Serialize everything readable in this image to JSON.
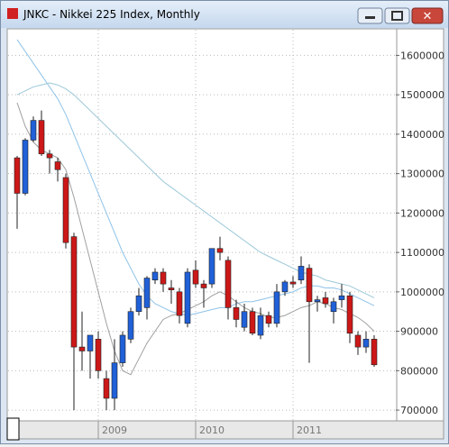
{
  "chart_data": {
    "type": "candlestick",
    "title": "JNKC - Nikkei 225 Index, Monthly",
    "categories": [
      null,
      null,
      null,
      null,
      null,
      null,
      null,
      null,
      null,
      null,
      "2009",
      null,
      null,
      null,
      null,
      null,
      null,
      null,
      null,
      null,
      null,
      null,
      "2010",
      null,
      null,
      null,
      null,
      null,
      null,
      null,
      null,
      null,
      null,
      null,
      "2011",
      null,
      null,
      null,
      null,
      null,
      null,
      null,
      null,
      null,
      null
    ],
    "open": [
      1340000,
      1250000,
      1385000,
      1435000,
      1350000,
      1330000,
      1290000,
      1140000,
      860000,
      850000,
      880000,
      780000,
      730000,
      820000,
      880000,
      950000,
      960000,
      1030000,
      1050000,
      1010000,
      1000000,
      920000,
      1055000,
      1020000,
      1020000,
      1110000,
      1080000,
      960000,
      910000,
      950000,
      890000,
      940000,
      920000,
      1000000,
      1025000,
      1030000,
      1060000,
      975000,
      985000,
      950000,
      980000,
      990000,
      890000,
      860000,
      880000
    ],
    "high": [
      1345000,
      1390000,
      1445000,
      1460000,
      1360000,
      1340000,
      1300000,
      1150000,
      950000,
      890000,
      900000,
      800000,
      880000,
      900000,
      960000,
      1010000,
      1040000,
      1060000,
      1060000,
      1030000,
      1010000,
      1060000,
      1080000,
      1030000,
      1110000,
      1140000,
      1090000,
      980000,
      970000,
      960000,
      960000,
      950000,
      1020000,
      1030000,
      1040000,
      1090000,
      1070000,
      990000,
      1000000,
      985000,
      1020000,
      1000000,
      900000,
      900000,
      890000
    ],
    "low": [
      1160000,
      1245000,
      1380000,
      1345000,
      1300000,
      1280000,
      1110000,
      700000,
      800000,
      780000,
      780000,
      700000,
      700000,
      810000,
      870000,
      940000,
      930000,
      1020000,
      1000000,
      970000,
      920000,
      910000,
      1010000,
      960000,
      1010000,
      1080000,
      930000,
      910000,
      900000,
      890000,
      880000,
      910000,
      910000,
      990000,
      1010000,
      1020000,
      820000,
      950000,
      960000,
      920000,
      960000,
      870000,
      840000,
      845000,
      810000
    ],
    "close": [
      1250000,
      1385000,
      1435000,
      1350000,
      1340000,
      1310000,
      1125000,
      860000,
      850000,
      890000,
      800000,
      730000,
      820000,
      890000,
      950000,
      990000,
      1035000,
      1050000,
      1020000,
      1005000,
      940000,
      1050000,
      1020000,
      1010000,
      1110000,
      1100000,
      960000,
      930000,
      950000,
      895000,
      940000,
      920000,
      1000000,
      1025000,
      1020000,
      1065000,
      975000,
      980000,
      970000,
      975000,
      990000,
      895000,
      860000,
      880000,
      815000
    ],
    "up_color": "#2060d8",
    "down_color": "#cc1818",
    "lines": [
      {
        "color": "#8fc3e8",
        "values": [
          1640000,
          1610000,
          1580000,
          1550000,
          1520000,
          1490000,
          1450000,
          1400000,
          1350000,
          1300000,
          1250000,
          1200000,
          1150000,
          1100000,
          1060000,
          1020000,
          990000,
          970000,
          960000,
          950000,
          945000,
          940000,
          945000,
          950000,
          955000,
          960000,
          960000,
          970000,
          975000,
          975000,
          980000,
          985000,
          990000,
          995000,
          1000000,
          1010000,
          1015000,
          1015000,
          1010000,
          1010000,
          1005000,
          995000,
          985000,
          975000,
          965000
        ]
      },
      {
        "color": "#9cc8d8",
        "values": [
          1500000,
          1510000,
          1520000,
          1525000,
          1530000,
          1525000,
          1515000,
          1500000,
          1480000,
          1460000,
          1440000,
          1420000,
          1400000,
          1380000,
          1360000,
          1340000,
          1320000,
          1300000,
          1280000,
          1265000,
          1250000,
          1235000,
          1220000,
          1205000,
          1190000,
          1175000,
          1160000,
          1145000,
          1130000,
          1115000,
          1100000,
          1090000,
          1080000,
          1070000,
          1060000,
          1050000,
          1045000,
          1040000,
          1030000,
          1025000,
          1020000,
          1015000,
          1005000,
          995000,
          985000
        ]
      },
      {
        "color": "#a0a0a0",
        "values": [
          1480000,
          1420000,
          1380000,
          1360000,
          1350000,
          1340000,
          1310000,
          1240000,
          1160000,
          1080000,
          1000000,
          920000,
          850000,
          800000,
          790000,
          830000,
          870000,
          900000,
          930000,
          940000,
          945000,
          955000,
          965000,
          975000,
          990000,
          1000000,
          990000,
          975000,
          960000,
          950000,
          945000,
          935000,
          935000,
          940000,
          950000,
          960000,
          965000,
          975000,
          970000,
          960000,
          955000,
          945000,
          935000,
          920000,
          900000
        ]
      }
    ],
    "ylim": [
      675000,
      1665000
    ],
    "yticks": [
      700000,
      800000,
      900000,
      1000000,
      1100000,
      1200000,
      1300000,
      1400000,
      1500000,
      1600000
    ],
    "grid": true
  }
}
